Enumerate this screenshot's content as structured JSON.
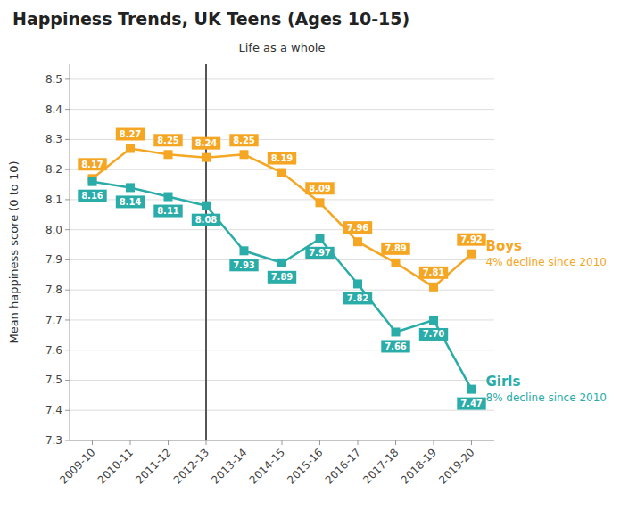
{
  "chart_data": {
    "type": "line",
    "title": "Happiness Trends, UK Teens (Ages 10-15)",
    "subtitle": "Life as a whole",
    "y_label": "Mean happiness score (0 to 10)",
    "categories": [
      "2009-10",
      "2010-11",
      "2011-12",
      "2012-13",
      "2013-14",
      "2014-15",
      "2015-16",
      "2016-17",
      "2017-18",
      "2018-19",
      "2019-20"
    ],
    "series": [
      {
        "name": "Boys",
        "color": "#F5A623",
        "marker": "square",
        "values": [
          8.17,
          8.27,
          8.25,
          8.24,
          8.25,
          8.19,
          8.09,
          7.96,
          7.89,
          7.81,
          7.92
        ]
      },
      {
        "name": "Girls",
        "color": "#2AACA8",
        "marker": "square",
        "values": [
          8.16,
          8.14,
          8.11,
          8.08,
          7.93,
          7.89,
          7.97,
          7.82,
          7.66,
          7.7,
          7.47
        ],
        "value_labels": [
          "8.16",
          "8.14",
          "8.11",
          "8.08",
          "7.93",
          "7.89",
          "7.97",
          "7.82",
          "7.66",
          "7.70",
          "7.47"
        ]
      }
    ],
    "annotations": [
      {
        "text": "4% decline since 2010",
        "series": "Boys"
      },
      {
        "text": "8% decline since 2010",
        "series": "Girls"
      }
    ],
    "vline": {
      "x": "2012-13"
    },
    "ylim": [
      7.3,
      8.55
    ],
    "yticks": [
      7.3,
      7.4,
      7.5,
      7.6,
      7.7,
      7.8,
      7.9,
      {
        "value": 8.0,
        "label": "8.0"
      },
      8.1,
      8.2,
      8.3,
      8.4,
      8.5
    ],
    "grid": true,
    "data_labels": true
  }
}
